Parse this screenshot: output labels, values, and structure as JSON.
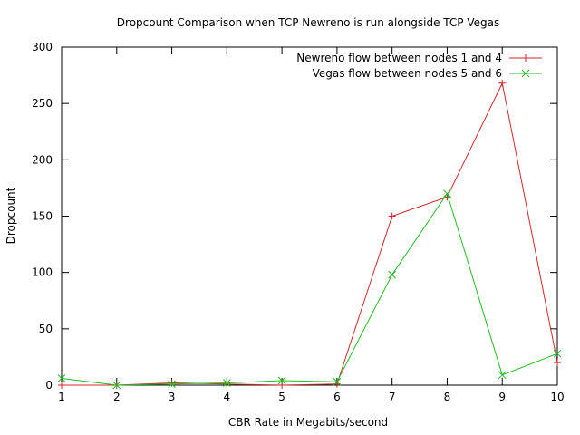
{
  "chart_data": {
    "type": "line",
    "title": "Dropcount Comparison when TCP Newreno is run alongside TCP Vegas",
    "xlabel": "CBR Rate in Megabits/second",
    "ylabel": "Dropcount",
    "xlim": [
      1,
      10
    ],
    "ylim": [
      0,
      300
    ],
    "xticks": [
      "1",
      "2",
      "3",
      "4",
      "5",
      "6",
      "7",
      "8",
      "9",
      "10"
    ],
    "yticks": [
      "0",
      "50",
      "100",
      "150",
      "200",
      "250",
      "300"
    ],
    "grid": false,
    "legend_position": "top-right",
    "x": [
      1,
      2,
      3,
      4,
      5,
      6,
      7,
      8,
      9,
      10
    ],
    "series": [
      {
        "name": "Newreno flow between nodes 1 and 4",
        "color": "#d62728",
        "marker": "plus",
        "values": [
          0,
          0,
          2,
          1,
          0,
          1,
          150,
          167,
          268,
          20
        ]
      },
      {
        "name": "Vegas flow between nodes 5 and 6",
        "color": "#22bb22",
        "marker": "cross",
        "values": [
          6,
          0,
          1,
          2,
          4,
          3,
          98,
          170,
          9,
          28
        ]
      }
    ]
  }
}
